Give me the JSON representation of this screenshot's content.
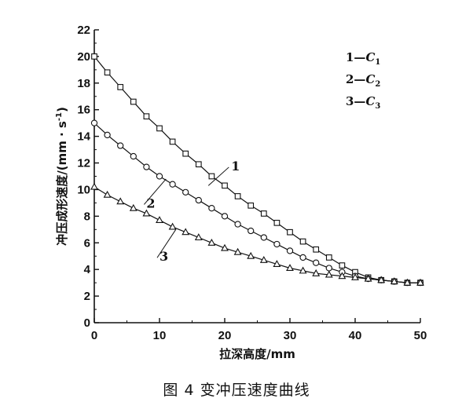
{
  "caption": "图 4  变冲压速度曲线",
  "chart_data": {
    "type": "line",
    "xlabel": "拉深高度/mm",
    "ylabel": "冲压成形速度/(mm · s",
    "ylabel_sup": "-1",
    "ylabel_close": ")",
    "xlim": [
      0,
      50
    ],
    "ylim": [
      0,
      22
    ],
    "xticks": [
      "0",
      "10",
      "20",
      "30",
      "40",
      "50"
    ],
    "yticks": [
      "0",
      "2",
      "4",
      "6",
      "8",
      "10",
      "12",
      "14",
      "16",
      "18",
      "20",
      "22"
    ],
    "legend": [
      {
        "num": "1",
        "dash": "—",
        "sym": "C",
        "sub": "1"
      },
      {
        "num": "2",
        "dash": "—",
        "sym": "C",
        "sub": "2"
      },
      {
        "num": "3",
        "dash": "—",
        "sym": "C",
        "sub": "3"
      }
    ],
    "series": [
      {
        "label": "1",
        "marker": "square",
        "x": [
          0,
          2,
          4,
          6,
          8,
          10,
          12,
          14,
          16,
          18,
          20,
          22,
          24,
          26,
          28,
          30,
          32,
          34,
          36,
          38,
          40,
          42,
          44,
          46,
          48,
          50
        ],
        "y": [
          20.0,
          18.8,
          17.7,
          16.6,
          15.5,
          14.6,
          13.6,
          12.7,
          11.9,
          11.0,
          10.3,
          9.5,
          8.8,
          8.2,
          7.5,
          6.8,
          6.1,
          5.5,
          4.9,
          4.3,
          3.8,
          3.4,
          3.2,
          3.1,
          3.0,
          3.0
        ]
      },
      {
        "label": "2",
        "marker": "circle",
        "x": [
          0,
          2,
          4,
          6,
          8,
          10,
          12,
          14,
          16,
          18,
          20,
          22,
          24,
          26,
          28,
          30,
          32,
          34,
          36,
          38,
          40,
          42,
          44,
          46,
          48,
          50
        ],
        "y": [
          15.0,
          14.1,
          13.3,
          12.5,
          11.7,
          11.0,
          10.4,
          9.8,
          9.2,
          8.6,
          8.0,
          7.4,
          6.9,
          6.4,
          5.9,
          5.4,
          4.9,
          4.5,
          4.1,
          3.8,
          3.5,
          3.3,
          3.2,
          3.1,
          3.0,
          3.0
        ]
      },
      {
        "label": "3",
        "marker": "triangle",
        "x": [
          0,
          2,
          4,
          6,
          8,
          10,
          12,
          14,
          16,
          18,
          20,
          22,
          24,
          26,
          28,
          30,
          32,
          34,
          36,
          38,
          40,
          42,
          44,
          46,
          48,
          50
        ],
        "y": [
          10.2,
          9.6,
          9.1,
          8.6,
          8.2,
          7.7,
          7.2,
          6.8,
          6.4,
          6.0,
          5.6,
          5.3,
          5.0,
          4.7,
          4.4,
          4.1,
          3.9,
          3.7,
          3.6,
          3.5,
          3.4,
          3.3,
          3.2,
          3.1,
          3.0,
          3.0
        ]
      }
    ],
    "curve_labels": [
      {
        "text": "1",
        "x": 21,
        "y": 11.8,
        "arrow_to": [
          17.5,
          10.3
        ]
      },
      {
        "text": "2",
        "x": 8,
        "y": 9.0,
        "arrow_to": [
          11,
          10.8
        ]
      },
      {
        "text": "3",
        "x": 10,
        "y": 5.0,
        "arrow_to": [
          12.5,
          7.0
        ]
      }
    ],
    "grid": false,
    "legend_position": "top-right"
  }
}
